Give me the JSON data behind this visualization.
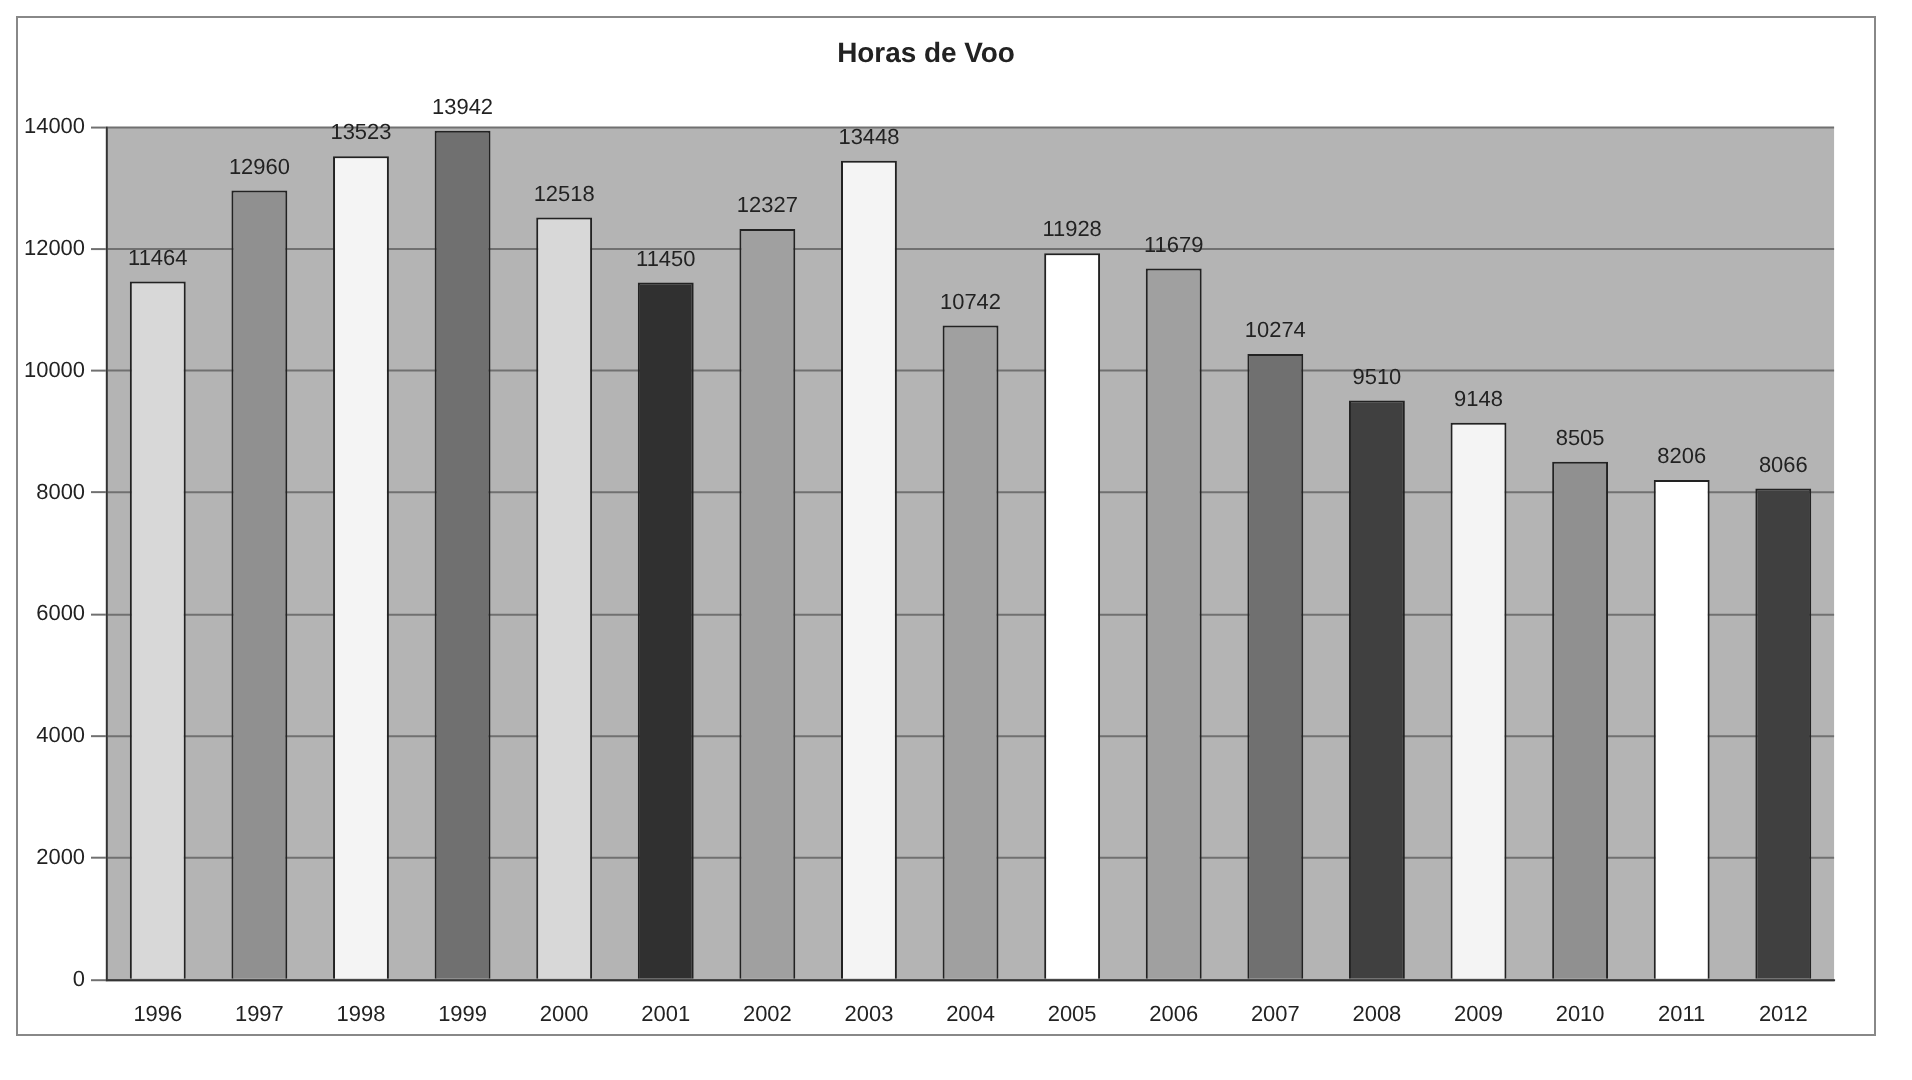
{
  "chart_data": {
    "type": "bar",
    "title": "Horas de Voo",
    "categories": [
      "1996",
      "1997",
      "1998",
      "1999",
      "2000",
      "2001",
      "2002",
      "2003",
      "2004",
      "2005",
      "2006",
      "2007",
      "2008",
      "2009",
      "2010",
      "2011",
      "2012"
    ],
    "values": [
      11464,
      12960,
      13523,
      13942,
      12518,
      11450,
      12327,
      13448,
      10742,
      11928,
      11679,
      10274,
      9510,
      9148,
      8505,
      8206,
      8066
    ],
    "colors": [
      "#d8d8d8",
      "#909090",
      "#f4f4f4",
      "#707070",
      "#d8d8d8",
      "#303030",
      "#a0a0a0",
      "#f4f4f4",
      "#a0a0a0",
      "#ffffff",
      "#a0a0a0",
      "#707070",
      "#404040",
      "#f4f4f4",
      "#909090",
      "#ffffff",
      "#404040"
    ],
    "ylim": [
      0,
      14000
    ],
    "yticks": [
      0,
      2000,
      4000,
      6000,
      8000,
      10000,
      12000,
      14000
    ],
    "grid": "y",
    "legend": false,
    "data_labels": true
  }
}
